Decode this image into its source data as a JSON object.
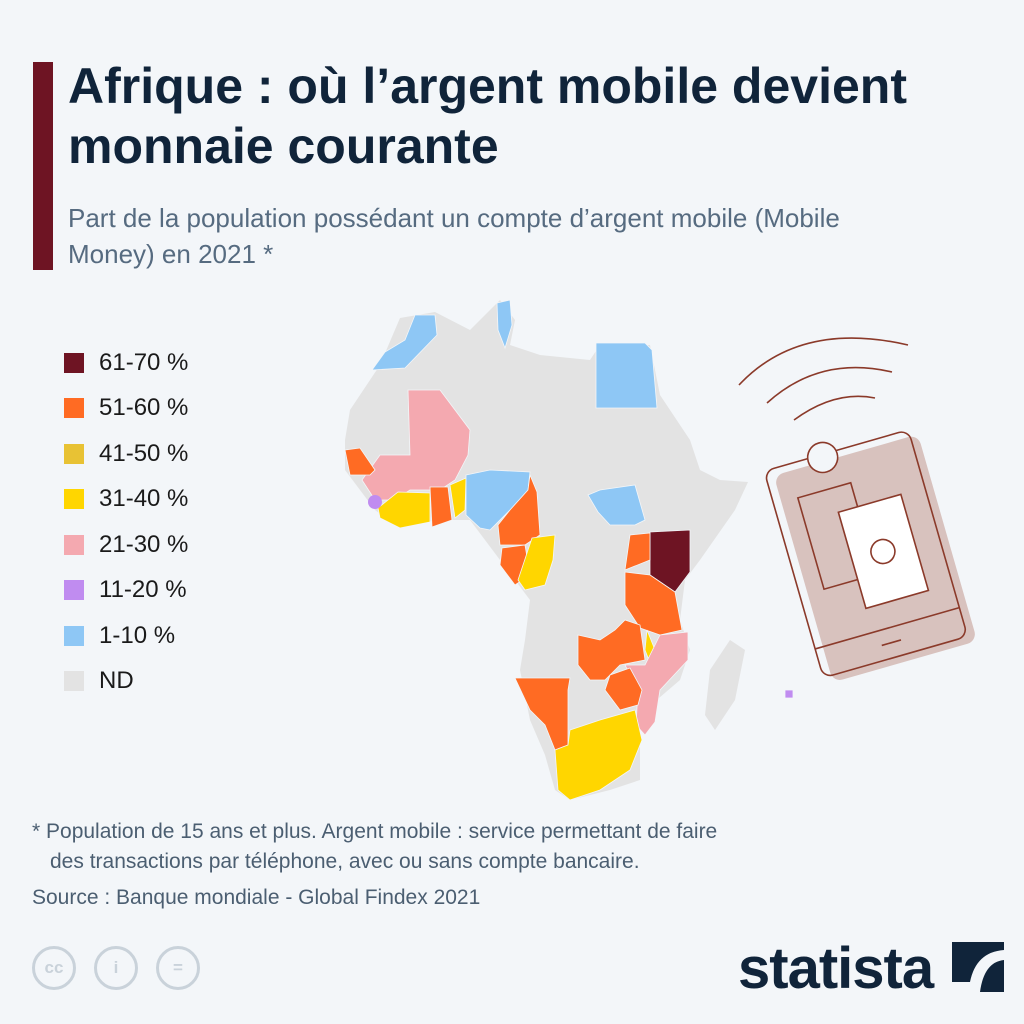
{
  "header": {
    "title": "Afrique : où l’argent mobile devient monnaie courante",
    "subtitle": "Part de la population possédant un compte d’argent mobile (Mobile Money) en 2021 *"
  },
  "legend": [
    {
      "label": "61-70 %",
      "color": "#6e1423"
    },
    {
      "label": "51-60 %",
      "color": "#ff6b23"
    },
    {
      "label": "41-50 %",
      "color": "#e8c234"
    },
    {
      "label": "31-40 %",
      "color": "#ffd600"
    },
    {
      "label": "21-30 %",
      "color": "#f4a9b0"
    },
    {
      "label": "11-20 %",
      "color": "#c08cf0"
    },
    {
      "label": "1-10 %",
      "color": "#8ec7f5"
    },
    {
      "label": "ND",
      "color": "#e3e3e3"
    }
  ],
  "map_fills": [
    {
      "region": "morocco",
      "range": "1-10 %"
    },
    {
      "region": "tunisia",
      "range": "1-10 %"
    },
    {
      "region": "egypt",
      "range": "1-10 %"
    },
    {
      "region": "mali-burkina-guinea",
      "range": "21-30 %"
    },
    {
      "region": "senegal",
      "range": "51-60 %"
    },
    {
      "region": "sierra-leone",
      "range": "11-20 %"
    },
    {
      "region": "cote-divoire-liberia",
      "range": "31-40 %"
    },
    {
      "region": "ghana",
      "range": "51-60 %"
    },
    {
      "region": "benin-togo",
      "range": "31-40 %"
    },
    {
      "region": "nigeria",
      "range": "1-10 %"
    },
    {
      "region": "cameroon",
      "range": "51-60 %"
    },
    {
      "region": "gabon",
      "range": "51-60 %"
    },
    {
      "region": "congo",
      "range": "31-40 %"
    },
    {
      "region": "south-sudan",
      "range": "1-10 %"
    },
    {
      "region": "kenya",
      "range": "61-70 %"
    },
    {
      "region": "uganda",
      "range": "51-60 %"
    },
    {
      "region": "tanzania",
      "range": "51-60 %"
    },
    {
      "region": "malawi",
      "range": "31-40 %"
    },
    {
      "region": "mozambique",
      "range": "21-30 %"
    },
    {
      "region": "zambia",
      "range": "51-60 %"
    },
    {
      "region": "zimbabwe",
      "range": "51-60 %"
    },
    {
      "region": "namibia",
      "range": "51-60 %"
    },
    {
      "region": "south-africa",
      "range": "31-40 %"
    },
    {
      "region": "mauritius",
      "range": "11-20 %"
    }
  ],
  "footer": {
    "note_line1": "* Population de 15 ans et plus. Argent mobile : service permettant de faire",
    "note_line2": "des transactions par téléphone, avec ou sans compte bancaire.",
    "source": "Source : Banque mondiale - Global Findex 2021",
    "cc_labels": [
      "cc",
      "i",
      "="
    ],
    "brand": "statista"
  }
}
